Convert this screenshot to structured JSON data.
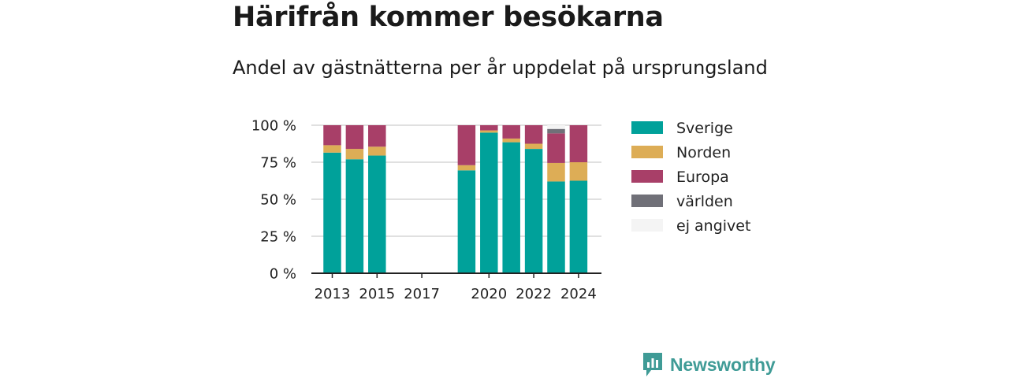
{
  "title": "Härifrån kommer besökarna",
  "subtitle": "Andel av gästnätterna per år uppdelat på ursprungsland",
  "brand": "Newsworthy",
  "chart_data": {
    "type": "bar",
    "stacked": true,
    "x": [
      2013,
      2014,
      2015,
      2016,
      2017,
      2018,
      2019,
      2020,
      2021,
      2022,
      2023,
      2024
    ],
    "x_tick_labels": [
      "2013",
      "2015",
      "2017",
      "2020",
      "2022",
      "2024"
    ],
    "x_ticks": [
      2013,
      2015,
      2017,
      2020,
      2022,
      2024
    ],
    "y_ticks": [
      0,
      25,
      50,
      75,
      100
    ],
    "y_tick_labels": [
      "0 %",
      "25 %",
      "50 %",
      "75 %",
      "100 %"
    ],
    "ylim": [
      0,
      100
    ],
    "grid": true,
    "legend_position": "right",
    "series": [
      {
        "name": "Sverige",
        "color": "#00a19a",
        "values": [
          81.5,
          77,
          79.5,
          null,
          null,
          null,
          69.5,
          95,
          88.5,
          84,
          62,
          62.5
        ]
      },
      {
        "name": "Norden",
        "color": "#ddad56",
        "values": [
          5,
          7,
          6,
          null,
          null,
          null,
          3.5,
          1.5,
          2.5,
          3.5,
          12.5,
          12.5
        ]
      },
      {
        "name": "Europa",
        "color": "#a83f68",
        "values": [
          13.5,
          16,
          14.5,
          null,
          null,
          null,
          27,
          3.5,
          9,
          12.5,
          20,
          25
        ]
      },
      {
        "name": "världen",
        "color": "#707078",
        "values": [
          0,
          0,
          0,
          null,
          null,
          null,
          0,
          0,
          0,
          0,
          3,
          0
        ]
      },
      {
        "name": "ej angivet",
        "color": "#f4f4f4",
        "values": [
          0,
          0,
          0,
          null,
          null,
          null,
          0,
          0,
          0,
          0,
          2.5,
          0
        ]
      }
    ]
  }
}
